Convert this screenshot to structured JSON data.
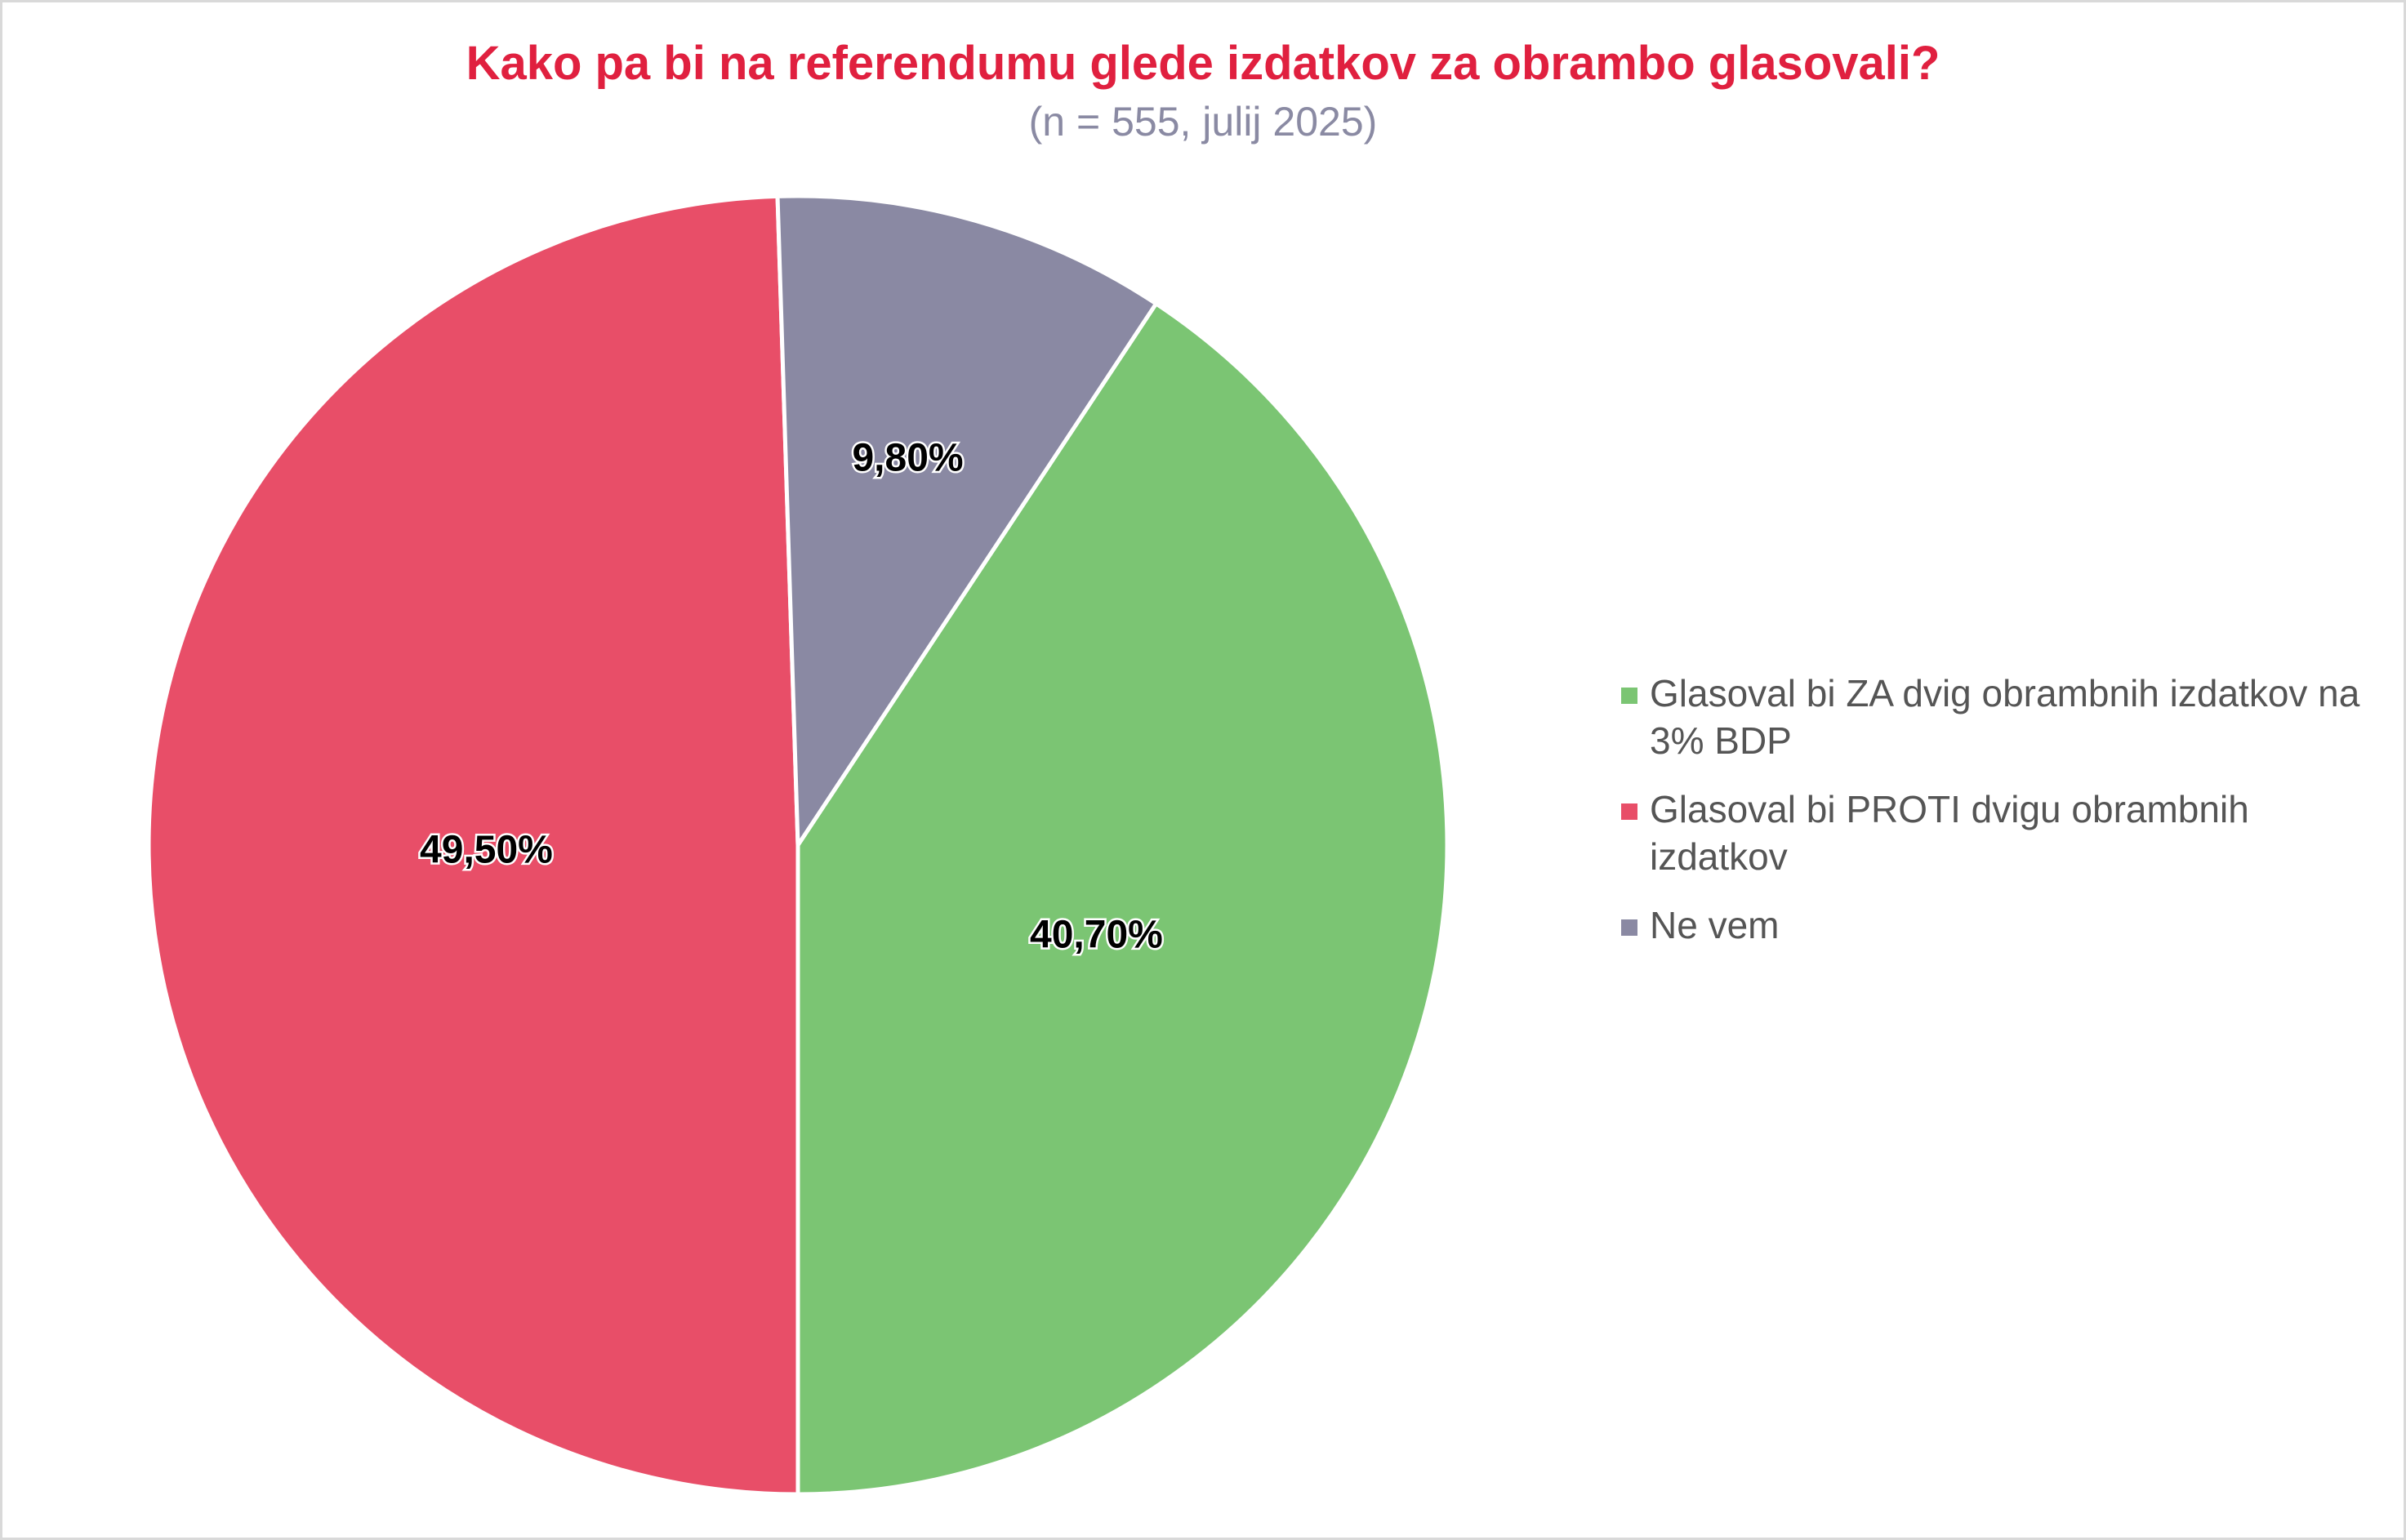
{
  "title": "Kako pa bi na referendumu glede izdatkov za obrambo glasovali?",
  "subtitle": "(n = 555, julij 2025)",
  "chart_data": {
    "type": "pie",
    "title": "Kako pa bi na referendumu glede izdatkov za obrambo glasovali?",
    "subtitle": "(n = 555, julij 2025)",
    "legend_position": "right",
    "slices": [
      {
        "label": "Glasoval bi ZA dvig obrambnih izdatkov na 3% BDP",
        "value": 40.7,
        "display": "40,70%",
        "color": "#7bc573"
      },
      {
        "label": "Glasoval bi PROTI dvigu obrambnih izdatkov",
        "value": 49.5,
        "display": "49,50%",
        "color": "#e84e68"
      },
      {
        "label": "Ne vem",
        "value": 9.8,
        "display": "9,80%",
        "color": "#8a89a3"
      }
    ]
  }
}
